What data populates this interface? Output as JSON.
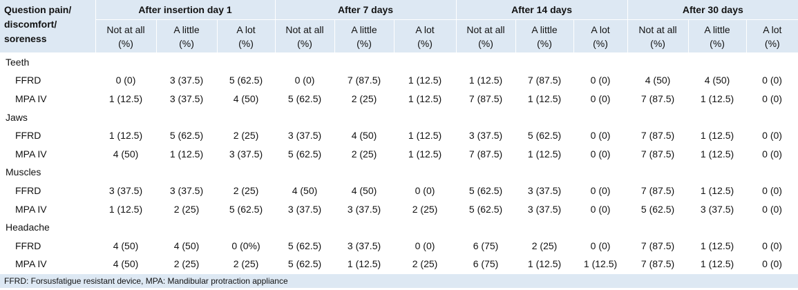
{
  "header": {
    "corner": [
      "Question pain/",
      "discomfort/",
      "soreness"
    ],
    "groups": [
      "After insertion day 1",
      "After 7 days",
      "After 14 days",
      "After 30 days"
    ],
    "subcolumns": [
      [
        "Not at all",
        "(%)"
      ],
      [
        "A little",
        "(%)"
      ],
      [
        "A lot",
        "(%)"
      ],
      [
        "Not at all",
        "(%)"
      ],
      [
        "A little",
        "(%)"
      ],
      [
        "A lot",
        "(%)"
      ],
      [
        "Not at all",
        "(%)"
      ],
      [
        "A little",
        "(%)"
      ],
      [
        "A lot",
        "(%)"
      ],
      [
        "Not at all",
        "(%)"
      ],
      [
        "A little",
        "(%)"
      ],
      [
        "A lot",
        "(%)"
      ]
    ]
  },
  "sections": [
    {
      "name": "Teeth",
      "rows": [
        {
          "label": "FFRD",
          "cells": [
            "0 (0)",
            "3 (37.5)",
            "5 (62.5)",
            "0 (0)",
            "7 (87.5)",
            "1 (12.5)",
            "1 (12.5)",
            "7 (87.5)",
            "0 (0)",
            "4 (50)",
            "4 (50)",
            "0 (0)"
          ]
        },
        {
          "label": "MPA IV",
          "cells": [
            "1 (12.5)",
            "3 (37.5)",
            "4 (50)",
            "5 (62.5)",
            "2 (25)",
            "1 (12.5)",
            "7 (87.5)",
            "1 (12.5)",
            "0 (0)",
            "7 (87.5)",
            "1 (12.5)",
            "0 (0)"
          ]
        }
      ]
    },
    {
      "name": "Jaws",
      "rows": [
        {
          "label": "FFRD",
          "cells": [
            "1 (12.5)",
            "5 (62.5)",
            "2 (25)",
            "3 (37.5)",
            "4 (50)",
            "1 (12.5)",
            "3 (37.5)",
            "5 (62.5)",
            "0 (0)",
            "7 (87.5)",
            "1 (12.5)",
            "0 (0)"
          ]
        },
        {
          "label": "MPA IV",
          "cells": [
            "4 (50)",
            "1 (12.5)",
            "3 (37.5)",
            "5 (62.5)",
            "2 (25)",
            "1 (12.5)",
            "7 (87.5)",
            "1 (12.5)",
            "0 (0)",
            "7 (87.5)",
            "1 (12.5)",
            "0 (0)"
          ]
        }
      ]
    },
    {
      "name": "Muscles",
      "rows": [
        {
          "label": "FFRD",
          "cells": [
            "3 (37.5)",
            "3 (37.5)",
            "2 (25)",
            "4 (50)",
            "4 (50)",
            "0 (0)",
            "5 (62.5)",
            "3 (37.5)",
            "0 (0)",
            "7 (87.5)",
            "1 (12.5)",
            "0 (0)"
          ]
        },
        {
          "label": "MPA IV",
          "cells": [
            "1 (12.5)",
            "2 (25)",
            "5 (62.5)",
            "3 (37.5)",
            "3 (37.5)",
            "2 (25)",
            "5 (62.5)",
            "3 (37.5)",
            "0 (0)",
            "5 (62.5)",
            "3 (37.5)",
            "0 (0)"
          ]
        }
      ]
    },
    {
      "name": "Headache",
      "rows": [
        {
          "label": "FFRD",
          "cells": [
            "4 (50)",
            "4 (50)",
            "0 (0%)",
            "5 (62.5)",
            "3 (37.5)",
            "0 (0)",
            "6 (75)",
            "2 (25)",
            "0 (0)",
            "7 (87.5)",
            "1 (12.5)",
            "0 (0)"
          ]
        },
        {
          "label": "MPA IV",
          "cells": [
            "4 (50)",
            "2 (25)",
            "2 (25)",
            "5 (62.5)",
            "1 (12.5)",
            "2 (25)",
            "6 (75)",
            "1 (12.5)",
            "1 (12.5)",
            "7 (87.5)",
            "1 (12.5)",
            "0 (0)"
          ]
        }
      ]
    }
  ],
  "footnote": "FFRD: Forsusfatigue resistant device, MPA: Mandibular protraction appliance"
}
